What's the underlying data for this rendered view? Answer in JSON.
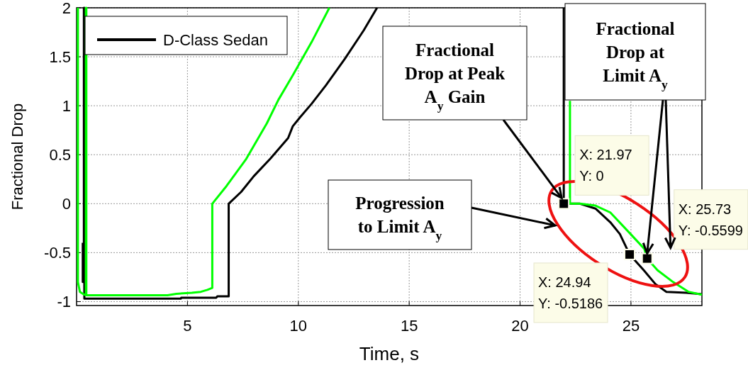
{
  "chart_data": {
    "type": "line",
    "xlabel": "Time, s",
    "ylabel": "Fractional Drop",
    "xlim": [
      0,
      28.2
    ],
    "ylim": [
      -1.04,
      2
    ],
    "xticks": [
      5,
      10,
      15,
      20,
      25
    ],
    "yticks": [
      -1,
      -0.5,
      0,
      0.5,
      1,
      1.5,
      2
    ],
    "grid": true,
    "legend": "top left",
    "line_style": "solid",
    "marker": "none",
    "series": [
      {
        "name": "D-Class Sedan",
        "color": "#000000",
        "x": [
          0.28,
          0.28,
          0.33,
          0.33,
          0.35,
          0.35,
          0.4,
          4.7,
          4.72,
          6.3,
          6.35,
          6.86,
          6.86,
          7.42,
          7.99,
          8.74,
          9.54,
          9.75,
          10.07,
          10.6,
          11.25,
          12.1,
          12.95,
          13.55,
          13.6,
          21.97,
          21.97,
          22.7,
          23.4,
          24.07,
          24.5,
          24.94,
          25.58,
          26.1,
          26.6,
          27.5,
          28.2
        ],
        "values": [
          -0.4,
          -0.8,
          -0.8,
          2,
          2,
          -0.97,
          -0.97,
          -0.97,
          -0.96,
          -0.96,
          -0.945,
          -0.945,
          0,
          0.12,
          0.28,
          0.46,
          0.67,
          0.79,
          0.88,
          1.02,
          1.21,
          1.48,
          1.77,
          2,
          null,
          2,
          0,
          0,
          -0.05,
          -0.19,
          -0.31,
          -0.5186,
          -0.68,
          -0.82,
          -0.9,
          -0.91,
          -0.925
        ]
      },
      {
        "color": "#00ff00",
        "x": [
          0.06,
          0.06,
          0.15,
          0.35,
          0.42,
          0.42,
          0.44,
          0.44,
          4.1,
          4.5,
          5.2,
          5.6,
          5.9,
          6.12,
          6.12,
          6.76,
          7.63,
          8.58,
          9.1,
          9.75,
          10.6,
          11.4,
          11.5,
          22.25,
          22.25,
          22.7,
          23.4,
          24.07,
          24.9,
          25.6,
          25.73,
          26.2,
          26.9,
          27.6,
          28.2
        ],
        "values": [
          2,
          -0.8,
          -0.9,
          -0.93,
          -0.93,
          2,
          2,
          -0.935,
          -0.935,
          -0.92,
          -0.91,
          -0.9,
          -0.88,
          -0.86,
          0,
          0.18,
          0.45,
          0.82,
          1.06,
          1.31,
          1.65,
          2,
          null,
          1.05,
          0,
          0,
          -0.02,
          -0.09,
          -0.29,
          -0.46,
          -0.5599,
          -0.68,
          -0.8,
          -0.9,
          -0.93
        ]
      }
    ],
    "annotations": [
      {
        "text": "Fractional Drop at Peak A$_{y}$ Gain",
        "x": 21.97,
        "y": 0
      },
      "Progression to Limit A$_{y}$",
      {
        "text": "Fractional Drop at Limit A$_{y}$",
        "x": 25.73,
        "y": -0.5599
      },
      {
        "text": "X: 21.97\nY: 0",
        "x": 21.97,
        "y": 0
      },
      {
        "text": "X: 24.94\nY: -0.5186",
        "x": 24.94,
        "y": -0.5186
      },
      {
        "text": "X: 25.73\nY: -0.5599",
        "x": 25.73,
        "y": -0.5599
      }
    ]
  }
}
